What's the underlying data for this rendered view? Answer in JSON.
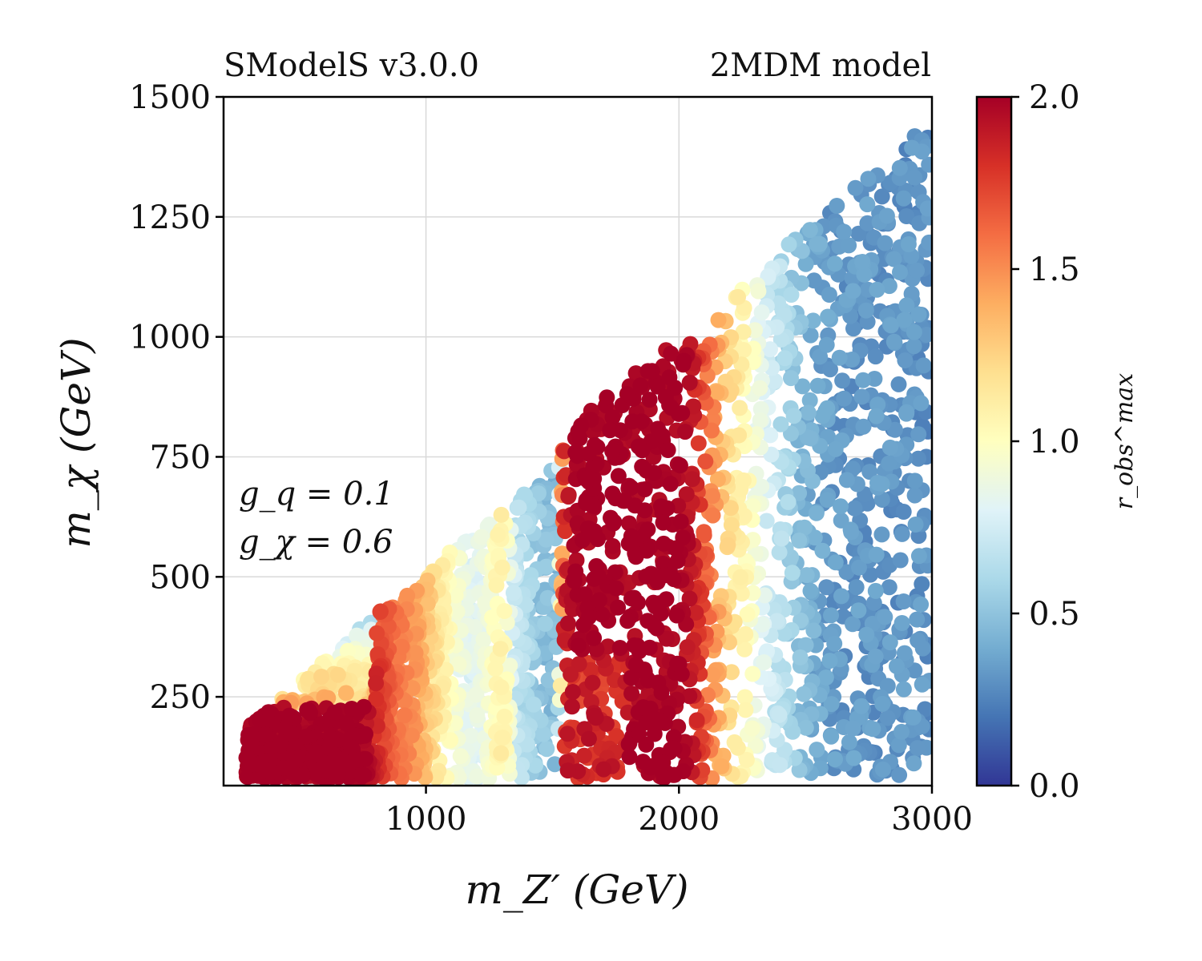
{
  "chart_data": {
    "type": "scatter",
    "title_left": "SModelS v3.0.0",
    "title_right": "2MDM model",
    "xlabel": "m_Z′ (GeV)",
    "ylabel": "m_χ (GeV)",
    "xlim": [
      200,
      3000
    ],
    "ylim": [
      65,
      1500
    ],
    "xticks": [
      1000,
      2000,
      3000
    ],
    "xtick_labels": [
      "1000",
      "2000",
      "3000"
    ],
    "yticks": [
      250,
      500,
      750,
      1000,
      1250,
      1500
    ],
    "ytick_labels": [
      "250",
      "500",
      "750",
      "1000",
      "1250",
      "1500"
    ],
    "grid": true,
    "annotations": [
      "g_q = 0.1",
      "g_χ = 0.6"
    ],
    "colorbar": {
      "label": "r_obs^max",
      "range": [
        0.0,
        2.0
      ],
      "ticks": [
        0.0,
        0.5,
        1.0,
        1.5,
        2.0
      ],
      "tick_labels": [
        "0.0",
        "0.5",
        "1.0",
        "1.5",
        "2.0"
      ],
      "colormap": "RdYlBu_r",
      "colors": [
        "#313695",
        "#4575b4",
        "#74add1",
        "#abd9e9",
        "#e0f3f8",
        "#ffffbf",
        "#fee090",
        "#fdae61",
        "#f46d43",
        "#d73027",
        "#a50026"
      ]
    },
    "series": [
      {
        "name": "scan points",
        "x_range": [
          280,
          3000
        ],
        "y_range": [
          80,
          1450
        ],
        "constraint": "m_χ ≲ m_Z′/2",
        "note": "r_obs^max vs m_Z′: ~2.0 below 800 GeV (low m_χ), ~1.5 near 950, ~0.5 near 1450, ~2.0 between 1550 and 2050, ~1.0 near 2250, ~0.3 above 2500"
      }
    ]
  }
}
